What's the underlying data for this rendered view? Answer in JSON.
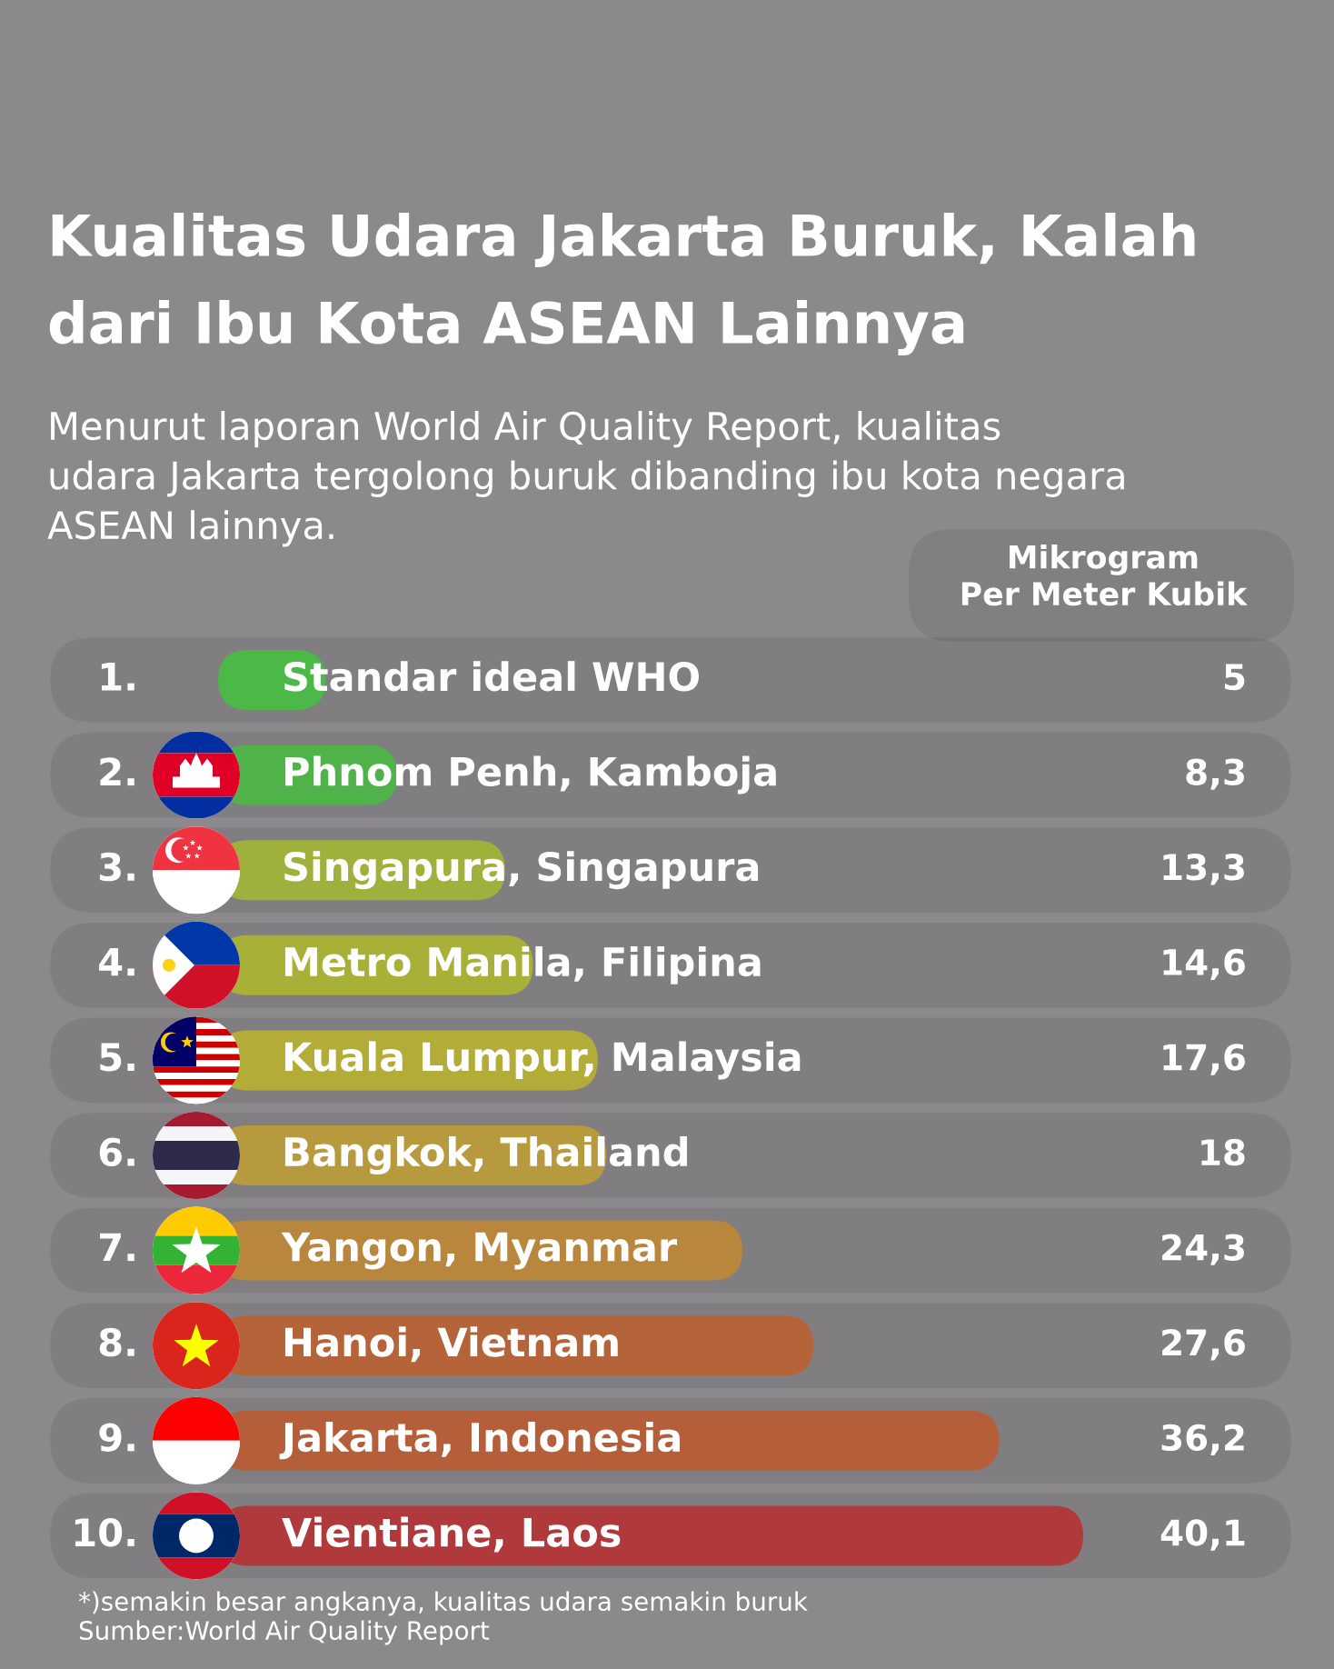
{
  "chart_data": {
    "type": "bar",
    "orientation": "horizontal",
    "title": "Kualitas Udara Jakarta Buruk, Kalah\ndari Ibu Kota ASEAN Lainnya",
    "subtitle": "Menurut laporan World Air Quality Report, kualitas\nudara Jakarta tergolong buruk dibanding ibu kota negara\nASEAN lainnya.",
    "xlabel": "Mikrogram\nPer Meter Kubik",
    "categories": [
      "Standar ideal WHO",
      "Phnom Penh, Kamboja",
      "Singapura, Singapura",
      "Metro Manila, Filipina",
      "Kuala Lumpur, Malaysia",
      "Bangkok, Thailand",
      "Yangon, Myanmar",
      "Hanoi, Vietnam",
      "Jakarta, Indonesia",
      "Vientiane, Laos"
    ],
    "values": [
      5,
      8.3,
      13.3,
      14.6,
      17.6,
      18,
      24.3,
      27.6,
      36.2,
      40.1
    ],
    "value_labels": [
      "5",
      "8,3",
      "13,3",
      "14,6",
      "17,6",
      "18",
      "24,3",
      "27,6",
      "36,2",
      "40,1"
    ],
    "colors": [
      "#4cb848",
      "#4fb34a",
      "#a0b03c",
      "#a9b038",
      "#b3ac38",
      "#b89a3e",
      "#b8863c",
      "#b5643a",
      "#b55e3a",
      "#b0393b"
    ],
    "annotations": [
      "1.",
      "2.",
      "3.",
      "4.",
      "5.",
      "6.",
      "7.",
      "8.",
      "9.",
      "10.",
      "*)semakin besar angkanya, kualitas udara semakin buruk",
      "Sumber:World Air Quality Report"
    ]
  }
}
